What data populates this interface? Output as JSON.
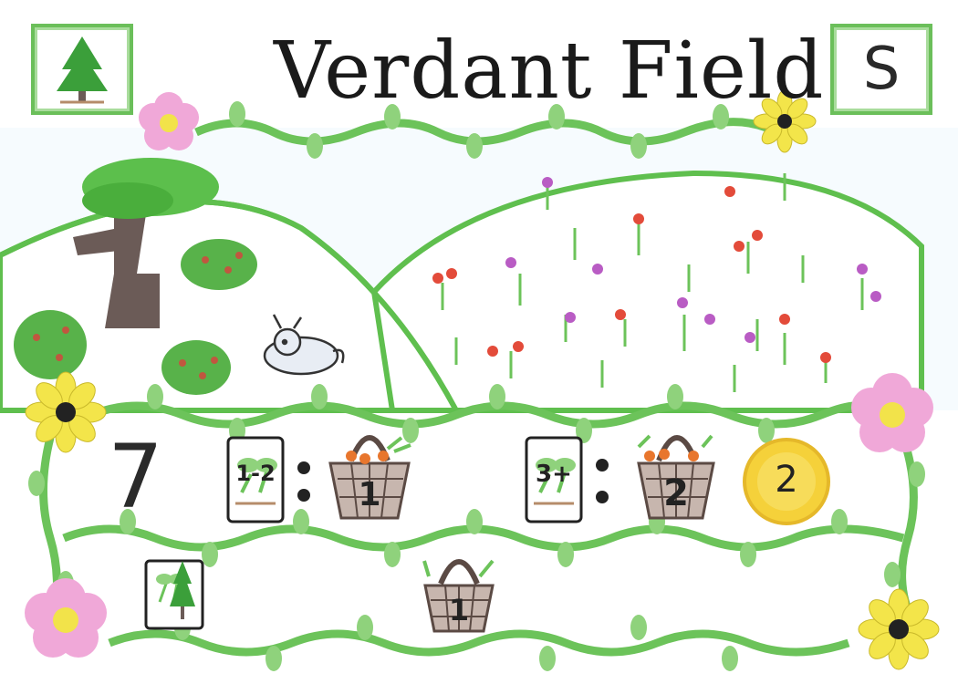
{
  "card": {
    "title": "Verdant Field",
    "corner_icon": "pine-tree-icon",
    "corner_value": "S",
    "big_number": "7",
    "rules": [
      {
        "range": "1-2",
        "basket_value": "1"
      },
      {
        "range": "3+",
        "basket_value": "2"
      }
    ],
    "coin_value": "2",
    "bottom_icon": "sprout-and-tree-card-icon",
    "bottom_basket_value": "1"
  },
  "colors": {
    "vine": "#6cc35a",
    "leaf": "#8fd27c",
    "pink_flower": "#f0a8d8",
    "yellow_flower": "#f3e54a",
    "coin": "#f5d13a",
    "basket": "#5b4a44"
  }
}
